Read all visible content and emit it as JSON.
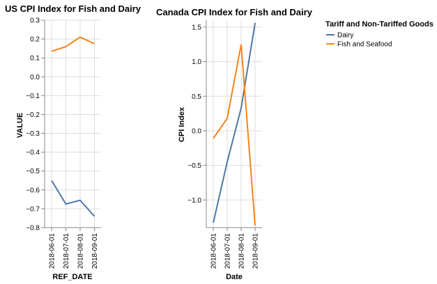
{
  "chart_data": [
    {
      "type": "line",
      "title": "US CPI Index for Fish and Dairy",
      "xlabel": "REF_DATE",
      "ylabel": "VALUE",
      "categories": [
        "2018-06-01",
        "2018-07-01",
        "2018-08-01",
        "2018-09-01"
      ],
      "ylim": [
        -0.8,
        0.3
      ],
      "yticks": [
        "0.3",
        "0.2",
        "0.1",
        "0.0",
        "−0.1",
        "−0.2",
        "−0.3",
        "−0.4",
        "−0.5",
        "−0.6",
        "−0.7",
        "−0.8"
      ],
      "ytick_values": [
        0.3,
        0.2,
        0.1,
        0.0,
        -0.1,
        -0.2,
        -0.3,
        -0.4,
        -0.5,
        -0.6,
        -0.7,
        -0.8
      ],
      "grid": true,
      "series": [
        {
          "color": "#4c78a8",
          "values": [
            -0.55,
            -0.675,
            -0.655,
            -0.74
          ]
        },
        {
          "color": "#f58518",
          "values": [
            0.135,
            0.16,
            0.21,
            0.175
          ]
        }
      ]
    },
    {
      "type": "line",
      "title": "Canada CPI Index for Fish and Dairy",
      "xlabel": "Date",
      "ylabel": "CPI Index",
      "categories": [
        "2018-06-01",
        "2018-07-01",
        "2018-08-01",
        "2018-09-01"
      ],
      "ylim": [
        -1.4,
        1.6
      ],
      "yticks": [
        "1.5",
        "1.0",
        "0.5",
        "0.0",
        "−0.5",
        "−1.0"
      ],
      "ytick_values": [
        1.5,
        1.0,
        0.5,
        0.0,
        -0.5,
        -1.0
      ],
      "grid": true,
      "legend": {
        "title": "Tariff and Non-Tariffed Goods",
        "position": "right"
      },
      "series": [
        {
          "name": "Dairy",
          "color": "#4c78a8",
          "values": [
            -1.33,
            -0.45,
            0.33,
            1.56
          ]
        },
        {
          "name": "Fish and Seafood",
          "color": "#f58518",
          "values": [
            -0.11,
            0.18,
            1.25,
            -1.37
          ]
        }
      ]
    }
  ]
}
